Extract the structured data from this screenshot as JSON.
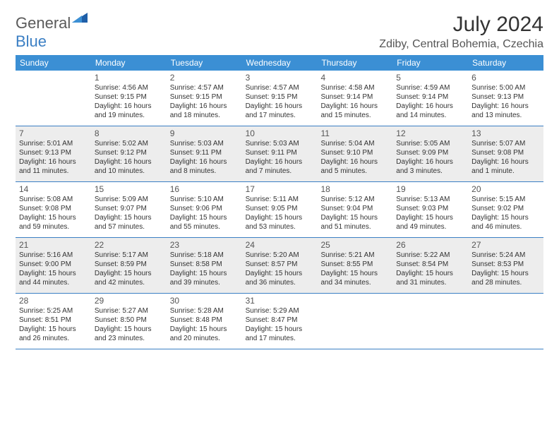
{
  "brand": {
    "part1": "General",
    "part2": "Blue"
  },
  "title": "July 2024",
  "location": "Zdiby, Central Bohemia, Czechia",
  "colors": {
    "header_bg": "#3b8fd4",
    "border": "#3b7fc4",
    "shaded_bg": "#ededed",
    "text": "#333333",
    "muted": "#555555",
    "white": "#ffffff"
  },
  "weekdays": [
    "Sunday",
    "Monday",
    "Tuesday",
    "Wednesday",
    "Thursday",
    "Friday",
    "Saturday"
  ],
  "weeks": [
    {
      "shaded": false,
      "days": [
        {
          "num": "",
          "sunrise": "",
          "sunset": "",
          "daylight1": "",
          "daylight2": ""
        },
        {
          "num": "1",
          "sunrise": "Sunrise: 4:56 AM",
          "sunset": "Sunset: 9:15 PM",
          "daylight1": "Daylight: 16 hours",
          "daylight2": "and 19 minutes."
        },
        {
          "num": "2",
          "sunrise": "Sunrise: 4:57 AM",
          "sunset": "Sunset: 9:15 PM",
          "daylight1": "Daylight: 16 hours",
          "daylight2": "and 18 minutes."
        },
        {
          "num": "3",
          "sunrise": "Sunrise: 4:57 AM",
          "sunset": "Sunset: 9:15 PM",
          "daylight1": "Daylight: 16 hours",
          "daylight2": "and 17 minutes."
        },
        {
          "num": "4",
          "sunrise": "Sunrise: 4:58 AM",
          "sunset": "Sunset: 9:14 PM",
          "daylight1": "Daylight: 16 hours",
          "daylight2": "and 15 minutes."
        },
        {
          "num": "5",
          "sunrise": "Sunrise: 4:59 AM",
          "sunset": "Sunset: 9:14 PM",
          "daylight1": "Daylight: 16 hours",
          "daylight2": "and 14 minutes."
        },
        {
          "num": "6",
          "sunrise": "Sunrise: 5:00 AM",
          "sunset": "Sunset: 9:13 PM",
          "daylight1": "Daylight: 16 hours",
          "daylight2": "and 13 minutes."
        }
      ]
    },
    {
      "shaded": true,
      "days": [
        {
          "num": "7",
          "sunrise": "Sunrise: 5:01 AM",
          "sunset": "Sunset: 9:13 PM",
          "daylight1": "Daylight: 16 hours",
          "daylight2": "and 11 minutes."
        },
        {
          "num": "8",
          "sunrise": "Sunrise: 5:02 AM",
          "sunset": "Sunset: 9:12 PM",
          "daylight1": "Daylight: 16 hours",
          "daylight2": "and 10 minutes."
        },
        {
          "num": "9",
          "sunrise": "Sunrise: 5:03 AM",
          "sunset": "Sunset: 9:11 PM",
          "daylight1": "Daylight: 16 hours",
          "daylight2": "and 8 minutes."
        },
        {
          "num": "10",
          "sunrise": "Sunrise: 5:03 AM",
          "sunset": "Sunset: 9:11 PM",
          "daylight1": "Daylight: 16 hours",
          "daylight2": "and 7 minutes."
        },
        {
          "num": "11",
          "sunrise": "Sunrise: 5:04 AM",
          "sunset": "Sunset: 9:10 PM",
          "daylight1": "Daylight: 16 hours",
          "daylight2": "and 5 minutes."
        },
        {
          "num": "12",
          "sunrise": "Sunrise: 5:05 AM",
          "sunset": "Sunset: 9:09 PM",
          "daylight1": "Daylight: 16 hours",
          "daylight2": "and 3 minutes."
        },
        {
          "num": "13",
          "sunrise": "Sunrise: 5:07 AM",
          "sunset": "Sunset: 9:08 PM",
          "daylight1": "Daylight: 16 hours",
          "daylight2": "and 1 minute."
        }
      ]
    },
    {
      "shaded": false,
      "days": [
        {
          "num": "14",
          "sunrise": "Sunrise: 5:08 AM",
          "sunset": "Sunset: 9:08 PM",
          "daylight1": "Daylight: 15 hours",
          "daylight2": "and 59 minutes."
        },
        {
          "num": "15",
          "sunrise": "Sunrise: 5:09 AM",
          "sunset": "Sunset: 9:07 PM",
          "daylight1": "Daylight: 15 hours",
          "daylight2": "and 57 minutes."
        },
        {
          "num": "16",
          "sunrise": "Sunrise: 5:10 AM",
          "sunset": "Sunset: 9:06 PM",
          "daylight1": "Daylight: 15 hours",
          "daylight2": "and 55 minutes."
        },
        {
          "num": "17",
          "sunrise": "Sunrise: 5:11 AM",
          "sunset": "Sunset: 9:05 PM",
          "daylight1": "Daylight: 15 hours",
          "daylight2": "and 53 minutes."
        },
        {
          "num": "18",
          "sunrise": "Sunrise: 5:12 AM",
          "sunset": "Sunset: 9:04 PM",
          "daylight1": "Daylight: 15 hours",
          "daylight2": "and 51 minutes."
        },
        {
          "num": "19",
          "sunrise": "Sunrise: 5:13 AM",
          "sunset": "Sunset: 9:03 PM",
          "daylight1": "Daylight: 15 hours",
          "daylight2": "and 49 minutes."
        },
        {
          "num": "20",
          "sunrise": "Sunrise: 5:15 AM",
          "sunset": "Sunset: 9:02 PM",
          "daylight1": "Daylight: 15 hours",
          "daylight2": "and 46 minutes."
        }
      ]
    },
    {
      "shaded": true,
      "days": [
        {
          "num": "21",
          "sunrise": "Sunrise: 5:16 AM",
          "sunset": "Sunset: 9:00 PM",
          "daylight1": "Daylight: 15 hours",
          "daylight2": "and 44 minutes."
        },
        {
          "num": "22",
          "sunrise": "Sunrise: 5:17 AM",
          "sunset": "Sunset: 8:59 PM",
          "daylight1": "Daylight: 15 hours",
          "daylight2": "and 42 minutes."
        },
        {
          "num": "23",
          "sunrise": "Sunrise: 5:18 AM",
          "sunset": "Sunset: 8:58 PM",
          "daylight1": "Daylight: 15 hours",
          "daylight2": "and 39 minutes."
        },
        {
          "num": "24",
          "sunrise": "Sunrise: 5:20 AM",
          "sunset": "Sunset: 8:57 PM",
          "daylight1": "Daylight: 15 hours",
          "daylight2": "and 36 minutes."
        },
        {
          "num": "25",
          "sunrise": "Sunrise: 5:21 AM",
          "sunset": "Sunset: 8:55 PM",
          "daylight1": "Daylight: 15 hours",
          "daylight2": "and 34 minutes."
        },
        {
          "num": "26",
          "sunrise": "Sunrise: 5:22 AM",
          "sunset": "Sunset: 8:54 PM",
          "daylight1": "Daylight: 15 hours",
          "daylight2": "and 31 minutes."
        },
        {
          "num": "27",
          "sunrise": "Sunrise: 5:24 AM",
          "sunset": "Sunset: 8:53 PM",
          "daylight1": "Daylight: 15 hours",
          "daylight2": "and 28 minutes."
        }
      ]
    },
    {
      "shaded": false,
      "days": [
        {
          "num": "28",
          "sunrise": "Sunrise: 5:25 AM",
          "sunset": "Sunset: 8:51 PM",
          "daylight1": "Daylight: 15 hours",
          "daylight2": "and 26 minutes."
        },
        {
          "num": "29",
          "sunrise": "Sunrise: 5:27 AM",
          "sunset": "Sunset: 8:50 PM",
          "daylight1": "Daylight: 15 hours",
          "daylight2": "and 23 minutes."
        },
        {
          "num": "30",
          "sunrise": "Sunrise: 5:28 AM",
          "sunset": "Sunset: 8:48 PM",
          "daylight1": "Daylight: 15 hours",
          "daylight2": "and 20 minutes."
        },
        {
          "num": "31",
          "sunrise": "Sunrise: 5:29 AM",
          "sunset": "Sunset: 8:47 PM",
          "daylight1": "Daylight: 15 hours",
          "daylight2": "and 17 minutes."
        },
        {
          "num": "",
          "sunrise": "",
          "sunset": "",
          "daylight1": "",
          "daylight2": ""
        },
        {
          "num": "",
          "sunrise": "",
          "sunset": "",
          "daylight1": "",
          "daylight2": ""
        },
        {
          "num": "",
          "sunrise": "",
          "sunset": "",
          "daylight1": "",
          "daylight2": ""
        }
      ]
    }
  ]
}
